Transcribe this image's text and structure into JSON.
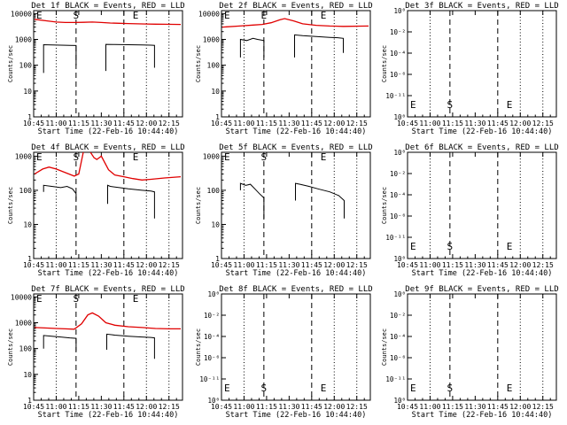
{
  "figure": {
    "x_ticks": [
      "10:45",
      "11:00",
      "11:15",
      "11:30",
      "11:45",
      "12:00",
      "12:15"
    ],
    "x_tick_hours": [
      10.75,
      11.0,
      11.25,
      11.5,
      11.75,
      12.0,
      12.25
    ],
    "x_range": [
      10.75,
      12.4
    ],
    "xlabel": "Start Time (22-Feb-16 10:44:40)",
    "ylabel": "Counts/sec"
  },
  "chart_data": [
    {
      "type": "line",
      "title": "Det 1f BLACK = Events, RED = LLD",
      "ylog": true,
      "yticks": [
        "1",
        "10",
        "100",
        "1000",
        "10000"
      ],
      "ylim": [
        1,
        13000
      ],
      "dotted_x": [
        11.0,
        12.0,
        12.25
      ],
      "dashed_x": [
        11.22,
        11.75
      ],
      "markers": [
        {
          "text": "E",
          "x": 10.76
        },
        {
          "text": "S",
          "x": 11.22
        },
        {
          "text": "E",
          "x": 11.88
        }
      ],
      "series": [
        {
          "color": "#e00000",
          "points": [
            [
              10.76,
              6000
            ],
            [
              10.9,
              5200
            ],
            [
              11.0,
              4700
            ],
            [
              11.1,
              4500
            ],
            [
              11.2,
              4500
            ],
            [
              11.3,
              4600
            ],
            [
              11.4,
              4700
            ],
            [
              11.5,
              4500
            ],
            [
              11.6,
              4300
            ],
            [
              11.7,
              4200
            ],
            [
              11.8,
              4100
            ],
            [
              11.9,
              4000
            ],
            [
              12.0,
              3950
            ],
            [
              12.1,
              3900
            ],
            [
              12.2,
              3850
            ],
            [
              12.38,
              3800
            ]
          ]
        },
        {
          "color": "#000000",
          "points": [
            [
              10.86,
              50
            ],
            [
              10.86,
              620
            ],
            [
              10.95,
              610
            ],
            [
              11.05,
              600
            ],
            [
              11.15,
              590
            ],
            [
              11.22,
              580
            ],
            [
              11.22,
              100
            ]
          ]
        },
        {
          "color": "#000000",
          "points": [
            [
              11.55,
              60
            ],
            [
              11.55,
              640
            ],
            [
              11.65,
              630
            ],
            [
              11.8,
              620
            ],
            [
              11.95,
              610
            ],
            [
              12.05,
              600
            ],
            [
              12.09,
              590
            ],
            [
              12.09,
              80
            ]
          ]
        }
      ]
    },
    {
      "type": "line",
      "title": "Det 2f BLACK = Events, RED = LLD",
      "ylog": true,
      "yticks": [
        "1",
        "10",
        "100",
        "1000",
        "10000"
      ],
      "ylim": [
        1,
        13000
      ],
      "dotted_x": [
        11.0,
        12.0,
        12.25
      ],
      "dashed_x": [
        11.22,
        11.75
      ],
      "markers": [
        {
          "text": "E",
          "x": 10.76
        },
        {
          "text": "E",
          "x": 11.22
        },
        {
          "text": "E",
          "x": 11.88
        }
      ],
      "series": [
        {
          "color": "#e00000",
          "points": [
            [
              10.76,
              3000
            ],
            [
              10.95,
              3300
            ],
            [
              11.1,
              3600
            ],
            [
              11.2,
              3800
            ],
            [
              11.3,
              4400
            ],
            [
              11.4,
              5800
            ],
            [
              11.45,
              6400
            ],
            [
              11.55,
              5200
            ],
            [
              11.65,
              4000
            ],
            [
              11.8,
              3500
            ],
            [
              11.95,
              3300
            ],
            [
              12.1,
              3200
            ],
            [
              12.38,
              3300
            ]
          ]
        },
        {
          "color": "#000000",
          "points": [
            [
              10.96,
              200
            ],
            [
              10.96,
              1000
            ],
            [
              11.03,
              900
            ],
            [
              11.1,
              1100
            ],
            [
              11.15,
              1000
            ],
            [
              11.22,
              900
            ],
            [
              11.22,
              200
            ]
          ]
        },
        {
          "color": "#000000",
          "points": [
            [
              11.56,
              200
            ],
            [
              11.56,
              1500
            ],
            [
              11.65,
              1400
            ],
            [
              11.8,
              1300
            ],
            [
              11.95,
              1200
            ],
            [
              12.05,
              1150
            ],
            [
              12.1,
              1100
            ],
            [
              12.1,
              300
            ]
          ]
        }
      ]
    },
    {
      "type": "line",
      "title": "Det 3f BLACK = Events, RED = LLD",
      "ylog": true,
      "yticks": [
        "10⁰",
        "10⁻¹¹",
        "10⁻⁶",
        "10⁻⁴",
        "10⁻²",
        "10⁰"
      ],
      "ylim": [
        0,
        5
      ],
      "dotted_x": [
        11.0,
        12.0,
        12.25
      ],
      "dashed_x": [
        11.22,
        11.75
      ],
      "markers": [
        {
          "text": "E",
          "x": 10.76
        },
        {
          "text": "S",
          "x": 11.22
        },
        {
          "text": "E",
          "x": 11.88
        }
      ],
      "series": []
    },
    {
      "type": "line",
      "title": "Det 4f BLACK = Events, RED = LLD",
      "ylog": true,
      "yticks": [
        "1",
        "10",
        "100",
        "1000"
      ],
      "ylim": [
        1,
        1300
      ],
      "dotted_x": [
        11.0,
        12.0,
        12.25
      ],
      "dashed_x": [
        11.22,
        11.75
      ],
      "markers": [
        {
          "text": "E",
          "x": 10.76
        },
        {
          "text": "S",
          "x": 11.22
        },
        {
          "text": "E",
          "x": 11.88
        }
      ],
      "series": [
        {
          "color": "#e00000",
          "points": [
            [
              10.76,
              300
            ],
            [
              10.85,
              420
            ],
            [
              10.92,
              480
            ],
            [
              11.0,
              420
            ],
            [
              11.1,
              330
            ],
            [
              11.2,
              260
            ],
            [
              11.25,
              300
            ],
            [
              11.3,
              1300
            ]
          ]
        },
        {
          "color": "#e00000",
          "points": [
            [
              11.38,
              1300
            ],
            [
              11.42,
              900
            ],
            [
              11.45,
              800
            ],
            [
              11.5,
              1000
            ],
            [
              11.58,
              400
            ],
            [
              11.65,
              280
            ],
            [
              11.75,
              250
            ],
            [
              11.85,
              220
            ],
            [
              11.95,
              200
            ],
            [
              12.05,
              210
            ],
            [
              12.2,
              230
            ],
            [
              12.38,
              250
            ]
          ]
        },
        {
          "color": "#000000",
          "points": [
            [
              10.86,
              90
            ],
            [
              10.86,
              140
            ],
            [
              10.95,
              130
            ],
            [
              11.05,
              120
            ],
            [
              11.12,
              130
            ],
            [
              11.18,
              110
            ],
            [
              11.22,
              80
            ],
            [
              11.22,
              50
            ]
          ]
        },
        {
          "color": "#000000",
          "points": [
            [
              11.57,
              40
            ],
            [
              11.57,
              140
            ],
            [
              11.6,
              130
            ],
            [
              11.7,
              120
            ],
            [
              11.8,
              110
            ],
            [
              11.95,
              100
            ],
            [
              12.05,
              95
            ],
            [
              12.09,
              90
            ],
            [
              12.09,
              15
            ]
          ]
        }
      ]
    },
    {
      "type": "line",
      "title": "Det 5f BLACK = Events, RED = LLD",
      "ylog": true,
      "yticks": [
        "1",
        "10",
        "100",
        "1000"
      ],
      "ylim": [
        1,
        1300
      ],
      "dotted_x": [
        11.0,
        12.0,
        12.25
      ],
      "dashed_x": [
        11.22,
        11.75
      ],
      "markers": [
        {
          "text": "E",
          "x": 10.76
        },
        {
          "text": "S",
          "x": 11.22
        },
        {
          "text": "E",
          "x": 11.88
        }
      ],
      "series": [
        {
          "color": "#000000",
          "points": [
            [
              10.96,
              100
            ],
            [
              10.96,
              160
            ],
            [
              11.02,
              140
            ],
            [
              11.07,
              150
            ],
            [
              11.12,
              110
            ],
            [
              11.17,
              80
            ],
            [
              11.22,
              60
            ],
            [
              11.22,
              15
            ]
          ]
        },
        {
          "color": "#000000",
          "points": [
            [
              11.57,
              50
            ],
            [
              11.57,
              160
            ],
            [
              11.62,
              150
            ],
            [
              11.72,
              130
            ],
            [
              11.82,
              110
            ],
            [
              11.95,
              90
            ],
            [
              12.05,
              70
            ],
            [
              12.11,
              50
            ],
            [
              12.11,
              15
            ]
          ]
        }
      ]
    },
    {
      "type": "line",
      "title": "Det 6f BLACK = Events, RED = LLD",
      "ylog": true,
      "yticks": [
        "10⁰",
        "10⁻¹¹",
        "10⁻⁶",
        "10⁻⁴",
        "10⁻²",
        "10⁰"
      ],
      "ylim": [
        0,
        5
      ],
      "dotted_x": [
        11.0,
        12.0,
        12.25
      ],
      "dashed_x": [
        11.22,
        11.75
      ],
      "markers": [
        {
          "text": "E",
          "x": 10.76
        },
        {
          "text": "S",
          "x": 11.22
        },
        {
          "text": "E",
          "x": 11.88
        }
      ],
      "series": []
    },
    {
      "type": "line",
      "title": "Det 7f BLACK = Events, RED = LLD",
      "ylog": true,
      "yticks": [
        "1",
        "10",
        "100",
        "1000",
        "10000"
      ],
      "ylim": [
        1,
        13000
      ],
      "dotted_x": [
        11.0,
        12.0,
        12.25
      ],
      "dashed_x": [
        11.22,
        11.75
      ],
      "markers": [
        {
          "text": "E",
          "x": 10.76
        },
        {
          "text": "S",
          "x": 11.22
        },
        {
          "text": "E",
          "x": 11.88
        }
      ],
      "series": [
        {
          "color": "#e00000",
          "points": [
            [
              10.76,
              650
            ],
            [
              10.9,
              620
            ],
            [
              11.0,
              600
            ],
            [
              11.1,
              580
            ],
            [
              11.2,
              560
            ],
            [
              11.28,
              900
            ],
            [
              11.35,
              2000
            ],
            [
              11.4,
              2400
            ],
            [
              11.47,
              1800
            ],
            [
              11.55,
              1000
            ],
            [
              11.65,
              800
            ],
            [
              11.8,
              700
            ],
            [
              11.95,
              650
            ],
            [
              12.1,
              600
            ],
            [
              12.25,
              580
            ],
            [
              12.38,
              580
            ]
          ]
        },
        {
          "color": "#000000",
          "points": [
            [
              10.86,
              100
            ],
            [
              10.86,
              320
            ],
            [
              10.95,
              300
            ],
            [
              11.05,
              280
            ],
            [
              11.15,
              260
            ],
            [
              11.22,
              250
            ],
            [
              11.22,
              80
            ]
          ]
        },
        {
          "color": "#000000",
          "points": [
            [
              11.56,
              90
            ],
            [
              11.56,
              360
            ],
            [
              11.65,
              330
            ],
            [
              11.8,
              300
            ],
            [
              11.95,
              280
            ],
            [
              12.05,
              270
            ],
            [
              12.09,
              260
            ],
            [
              12.09,
              40
            ]
          ]
        }
      ]
    },
    {
      "type": "line",
      "title": "Det 8f BLACK = Events, RED = LLD",
      "ylog": true,
      "yticks": [
        "10⁰",
        "10⁻¹¹",
        "10⁻⁶",
        "10⁻⁴",
        "10⁻²",
        "10⁰"
      ],
      "ylim": [
        0,
        5
      ],
      "dotted_x": [
        11.0,
        12.0,
        12.25
      ],
      "dashed_x": [
        11.22,
        11.75
      ],
      "markers": [
        {
          "text": "E",
          "x": 10.76
        },
        {
          "text": "S",
          "x": 11.22
        },
        {
          "text": "E",
          "x": 11.88
        }
      ],
      "series": []
    },
    {
      "type": "line",
      "title": "Det 9f BLACK = Events, RED = LLD",
      "ylog": true,
      "yticks": [
        "10⁰",
        "10⁻¹¹",
        "10⁻⁶",
        "10⁻⁴",
        "10⁻²",
        "10⁰"
      ],
      "ylim": [
        0,
        5
      ],
      "dotted_x": [
        11.0,
        12.0,
        12.25
      ],
      "dashed_x": [
        11.22,
        11.75
      ],
      "markers": [
        {
          "text": "E",
          "x": 10.76
        },
        {
          "text": "S",
          "x": 11.22
        },
        {
          "text": "E",
          "x": 11.88
        }
      ],
      "series": []
    }
  ]
}
